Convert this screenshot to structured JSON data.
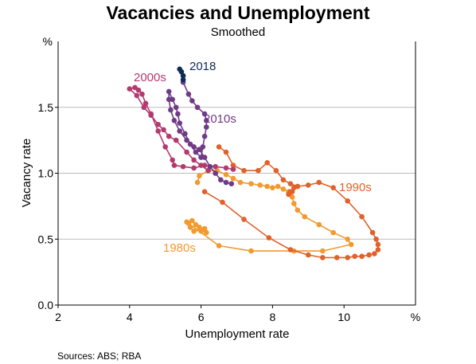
{
  "colors": {
    "1980s": "#f29a2e",
    "1990s": "#e0612a",
    "2000s": "#b23a6e",
    "2010s": "#6f3b86",
    "2018": "#0d2b56",
    "grid": "#bdbdbd",
    "axis": "#000000"
  },
  "footer": {
    "sources": "Sources:  ABS; RBA"
  },
  "chart_data": {
    "type": "scatter",
    "title": "Vacancies and Unemployment",
    "subtitle": "Smoothed",
    "xlabel": "Unemployment rate",
    "ylabel": "Vacancy rate",
    "x_unit": "%",
    "y_unit": "%",
    "xlim": [
      2,
      12
    ],
    "ylim": [
      0,
      2
    ],
    "x_ticks": [
      "2",
      "4",
      "6",
      "8",
      "10",
      "%"
    ],
    "y_ticks": [
      "0.0",
      "0.5",
      "1.0",
      "1.5"
    ],
    "grid": "horizontal",
    "series": [
      {
        "name": "1980s",
        "color": "#f29a2e",
        "points": [
          [
            5.6,
            0.63
          ],
          [
            5.75,
            0.64
          ],
          [
            5.85,
            0.61
          ],
          [
            5.95,
            0.59
          ],
          [
            6.0,
            0.56
          ],
          [
            6.1,
            0.58
          ],
          [
            6.15,
            0.55
          ],
          [
            6.05,
            0.57
          ],
          [
            5.8,
            0.56
          ],
          [
            5.7,
            0.59
          ],
          [
            5.65,
            0.62
          ],
          [
            6.5,
            0.45
          ],
          [
            7.4,
            0.41
          ],
          [
            8.6,
            0.41
          ],
          [
            9.4,
            0.41
          ],
          [
            10.2,
            0.46
          ],
          [
            10.1,
            0.5
          ],
          [
            9.7,
            0.55
          ],
          [
            9.3,
            0.61
          ],
          [
            8.9,
            0.67
          ],
          [
            8.7,
            0.72
          ],
          [
            8.6,
            0.77
          ],
          [
            8.55,
            0.82
          ],
          [
            8.45,
            0.86
          ],
          [
            8.3,
            0.88
          ],
          [
            8.15,
            0.9
          ],
          [
            8.0,
            0.89
          ],
          [
            7.85,
            0.9
          ],
          [
            7.65,
            0.91
          ],
          [
            7.4,
            0.92
          ],
          [
            7.1,
            0.93
          ],
          [
            6.9,
            0.96
          ],
          [
            6.7,
            0.99
          ],
          [
            6.45,
            1.02
          ],
          [
            6.2,
            1.02
          ],
          [
            5.95,
            0.98
          ],
          [
            5.9,
            0.93
          ]
        ]
      },
      {
        "name": "1990s",
        "color": "#e0612a",
        "points": [
          [
            6.1,
            0.86
          ],
          [
            6.6,
            0.78
          ],
          [
            7.2,
            0.65
          ],
          [
            7.9,
            0.51
          ],
          [
            8.5,
            0.42
          ],
          [
            9.0,
            0.38
          ],
          [
            9.4,
            0.36
          ],
          [
            9.8,
            0.36
          ],
          [
            10.1,
            0.36
          ],
          [
            10.3,
            0.37
          ],
          [
            10.5,
            0.37
          ],
          [
            10.7,
            0.38
          ],
          [
            10.85,
            0.39
          ],
          [
            10.95,
            0.42
          ],
          [
            10.95,
            0.46
          ],
          [
            10.9,
            0.5
          ],
          [
            10.8,
            0.55
          ],
          [
            10.5,
            0.67
          ],
          [
            10.1,
            0.79
          ],
          [
            9.7,
            0.89
          ],
          [
            9.3,
            0.93
          ],
          [
            9.0,
            0.91
          ],
          [
            8.7,
            0.9
          ],
          [
            8.55,
            0.86
          ],
          [
            8.45,
            0.84
          ],
          [
            8.5,
            0.86
          ],
          [
            8.6,
            0.89
          ],
          [
            8.7,
            0.9
          ],
          [
            8.5,
            0.92
          ],
          [
            8.3,
            0.95
          ],
          [
            8.1,
            1.02
          ],
          [
            7.85,
            1.08
          ],
          [
            7.6,
            1.02
          ],
          [
            7.2,
            1.02
          ],
          [
            6.9,
            1.06
          ],
          [
            6.7,
            1.16
          ],
          [
            6.5,
            1.2
          ]
        ]
      },
      {
        "name": "2000s",
        "color": "#b23a6e",
        "points": [
          [
            6.9,
            1.03
          ],
          [
            6.7,
            1.04
          ],
          [
            6.4,
            1.05
          ],
          [
            6.1,
            1.06
          ],
          [
            5.8,
            1.04
          ],
          [
            5.5,
            1.05
          ],
          [
            5.25,
            1.06
          ],
          [
            5.2,
            1.1
          ],
          [
            5.0,
            1.2
          ],
          [
            4.8,
            1.32
          ],
          [
            4.6,
            1.45
          ],
          [
            4.45,
            1.53
          ],
          [
            4.35,
            1.6
          ],
          [
            4.25,
            1.63
          ],
          [
            4.15,
            1.65
          ],
          [
            4.0,
            1.64
          ],
          [
            4.2,
            1.59
          ],
          [
            4.4,
            1.5
          ],
          [
            4.6,
            1.44
          ],
          [
            4.8,
            1.37
          ],
          [
            4.95,
            1.33
          ],
          [
            5.1,
            1.28
          ],
          [
            5.3,
            1.25
          ],
          [
            5.6,
            1.16
          ],
          [
            5.8,
            1.1
          ],
          [
            6.0,
            1.06
          ],
          [
            6.2,
            1.02
          ]
        ]
      },
      {
        "name": "2010s",
        "color": "#6f3b86",
        "points": [
          [
            6.85,
            0.92
          ],
          [
            6.7,
            0.93
          ],
          [
            6.55,
            0.95
          ],
          [
            6.4,
            1.0
          ],
          [
            6.25,
            1.05
          ],
          [
            6.1,
            1.12
          ],
          [
            5.95,
            1.18
          ],
          [
            5.8,
            1.2
          ],
          [
            5.6,
            1.25
          ],
          [
            5.4,
            1.32
          ],
          [
            5.25,
            1.4
          ],
          [
            5.15,
            1.48
          ],
          [
            5.1,
            1.56
          ],
          [
            5.1,
            1.62
          ],
          [
            5.2,
            1.56
          ],
          [
            5.3,
            1.5
          ],
          [
            5.35,
            1.45
          ],
          [
            5.4,
            1.38
          ],
          [
            5.55,
            1.3
          ],
          [
            5.7,
            1.22
          ],
          [
            5.85,
            1.16
          ],
          [
            6.0,
            1.12
          ],
          [
            6.05,
            1.2
          ],
          [
            6.1,
            1.28
          ],
          [
            6.15,
            1.35
          ],
          [
            6.15,
            1.4
          ],
          [
            6.1,
            1.45
          ],
          [
            5.9,
            1.5
          ],
          [
            5.75,
            1.55
          ],
          [
            5.65,
            1.6
          ],
          [
            5.5,
            1.69
          ]
        ]
      },
      {
        "name": "2018",
        "color": "#0d2b56",
        "points": [
          [
            5.4,
            1.79
          ],
          [
            5.45,
            1.77
          ],
          [
            5.5,
            1.74
          ],
          [
            5.5,
            1.71
          ]
        ]
      }
    ]
  }
}
